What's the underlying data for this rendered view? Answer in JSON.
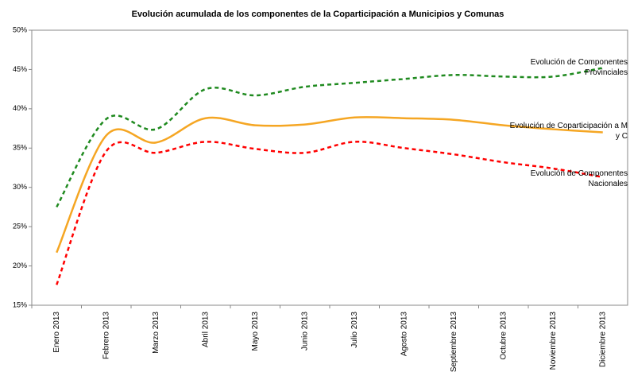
{
  "chart_data": {
    "type": "line",
    "title": "Evolución acumulada de los componentes de la Coparticipación a Municipios y Comunas",
    "categories": [
      "Enero 2013",
      "Febrero 2013",
      "Marzo 2013",
      "Abril 2013",
      "Mayo 2013",
      "Junio 2013",
      "Julio 2013",
      "Agosto 2013",
      "Septiembre 2013",
      "Octubre 2013",
      "Noviembre 2013",
      "Diciembre 2013"
    ],
    "series": [
      {
        "name": "Evolución de Componentes Provinciales",
        "color": "#1f8a1f",
        "dashed": true,
        "values": [
          27.5,
          38.7,
          37.4,
          42.5,
          41.7,
          42.8,
          43.3,
          43.8,
          44.3,
          44.1,
          44.1,
          45.2
        ]
      },
      {
        "name": "Evolución de Coparticipación a M y C",
        "color": "#f5a623",
        "dashed": false,
        "values": [
          21.7,
          36.6,
          35.7,
          38.8,
          37.9,
          38.0,
          38.9,
          38.8,
          38.6,
          37.9,
          37.4,
          37.0
        ]
      },
      {
        "name": "Evolución de Componentes Nacionales",
        "color": "#ff0000",
        "dashed": true,
        "values": [
          17.6,
          34.6,
          34.4,
          35.8,
          34.9,
          34.4,
          35.8,
          35.0,
          34.2,
          33.2,
          32.4,
          31.3
        ]
      }
    ],
    "ylim": [
      15,
      50
    ],
    "yticks": [
      {
        "value": 15,
        "label": "15%"
      },
      {
        "value": 20,
        "label": "20%"
      },
      {
        "value": 25,
        "label": "25%"
      },
      {
        "value": 30,
        "label": "30%"
      },
      {
        "value": 35,
        "label": "35%"
      },
      {
        "value": 40,
        "label": "40%"
      },
      {
        "value": 45,
        "label": "45%"
      },
      {
        "value": 50,
        "label": "50%"
      }
    ],
    "grid": false
  }
}
